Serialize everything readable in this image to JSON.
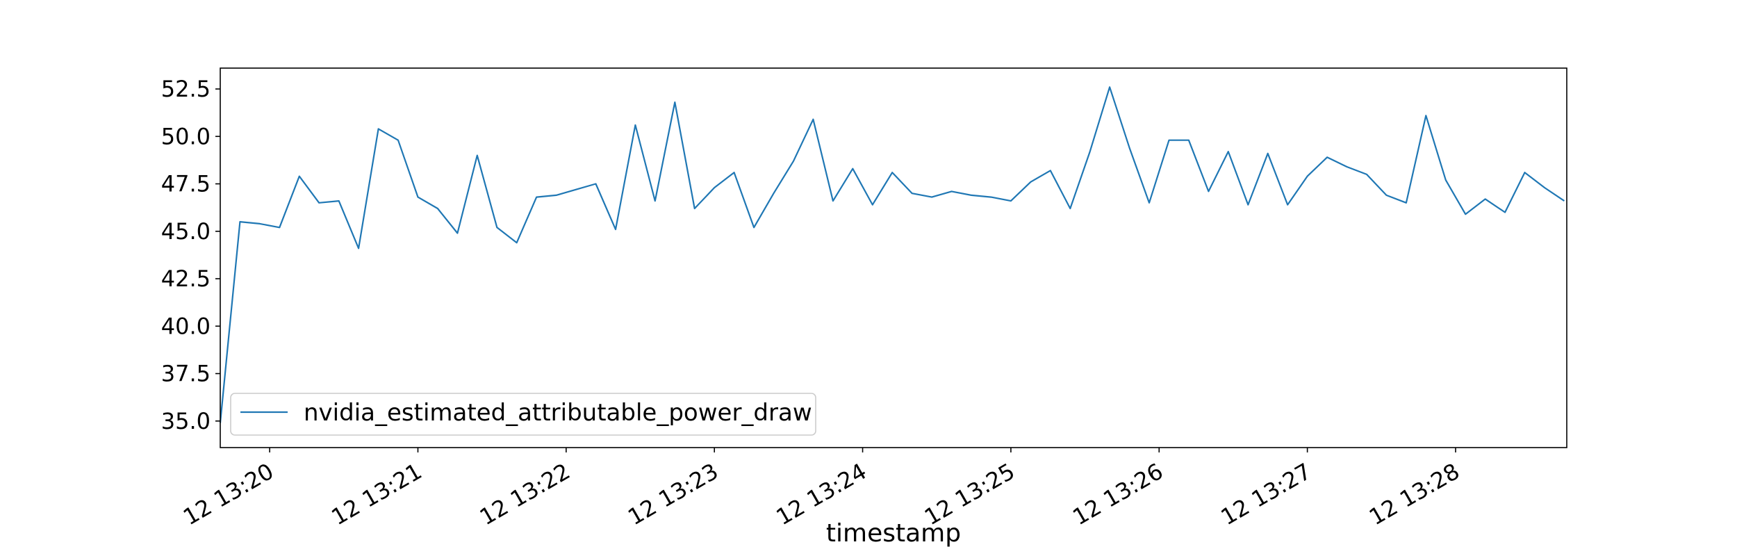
{
  "chart_data": {
    "type": "line",
    "title": "",
    "xlabel": "timestamp",
    "ylabel": "",
    "x_ticks": [
      "12 13:20",
      "12 13:21",
      "12 13:22",
      "12 13:23",
      "12 13:24",
      "12 13:25",
      "12 13:26",
      "12 13:27",
      "12 13:28"
    ],
    "x_tick_values": [
      "13:20:00",
      "13:21:00",
      "13:22:00",
      "13:23:00",
      "13:24:00",
      "13:25:00",
      "13:26:00",
      "13:27:00",
      "13:28:00"
    ],
    "xlim": [
      "13:19:40",
      "13:28:45"
    ],
    "y_ticks": [
      "35.0",
      "37.5",
      "40.0",
      "42.5",
      "45.0",
      "47.5",
      "50.0",
      "52.5"
    ],
    "y_tick_values": [
      35.0,
      37.5,
      40.0,
      42.5,
      45.0,
      47.5,
      50.0,
      52.5
    ],
    "ylim": [
      33.6,
      53.6
    ],
    "grid": false,
    "legend_position": "lower-left",
    "series": [
      {
        "name": "nvidia_estimated_attributable_power_draw",
        "color": "#1f77b4",
        "x": [
          "13:19:40",
          "13:19:48",
          "13:19:56",
          "13:20:04",
          "13:20:12",
          "13:20:20",
          "13:20:28",
          "13:20:36",
          "13:20:44",
          "13:20:52",
          "13:21:00",
          "13:21:08",
          "13:21:16",
          "13:21:24",
          "13:21:32",
          "13:21:40",
          "13:21:48",
          "13:21:56",
          "13:22:04",
          "13:22:12",
          "13:22:20",
          "13:22:28",
          "13:22:36",
          "13:22:44",
          "13:22:52",
          "13:23:00",
          "13:23:08",
          "13:23:16",
          "13:23:24",
          "13:23:32",
          "13:23:40",
          "13:23:48",
          "13:23:56",
          "13:24:04",
          "13:24:12",
          "13:24:20",
          "13:24:28",
          "13:24:36",
          "13:24:44",
          "13:24:52",
          "13:25:00",
          "13:25:08",
          "13:25:16",
          "13:25:24",
          "13:25:32",
          "13:25:40",
          "13:25:48",
          "13:25:56",
          "13:26:04",
          "13:26:12",
          "13:26:20",
          "13:26:28",
          "13:26:36",
          "13:26:44",
          "13:26:52",
          "13:27:00",
          "13:27:08",
          "13:27:16",
          "13:27:24",
          "13:27:32",
          "13:27:40",
          "13:27:48",
          "13:27:56",
          "13:28:04",
          "13:28:12",
          "13:28:20",
          "13:28:28",
          "13:28:36",
          "13:28:44"
        ],
        "y": [
          34.9,
          45.5,
          45.4,
          45.2,
          47.9,
          46.5,
          46.6,
          44.1,
          50.4,
          49.8,
          46.8,
          46.2,
          44.9,
          49.0,
          45.2,
          44.4,
          46.8,
          46.9,
          47.2,
          47.5,
          45.1,
          50.6,
          46.6,
          51.8,
          46.2,
          47.3,
          48.1,
          45.2,
          47.0,
          48.7,
          50.9,
          46.6,
          48.3,
          46.4,
          48.1,
          47.0,
          46.8,
          47.1,
          46.9,
          46.8,
          46.6,
          47.6,
          48.2,
          46.2,
          49.2,
          52.6,
          49.4,
          46.5,
          49.8,
          49.8,
          47.1,
          49.2,
          46.4,
          49.1,
          46.4,
          47.9,
          48.9,
          48.4,
          48.0,
          46.9,
          46.5,
          51.1,
          47.7,
          45.9,
          46.7,
          46.0,
          48.1,
          47.3,
          46.6
        ]
      }
    ]
  }
}
